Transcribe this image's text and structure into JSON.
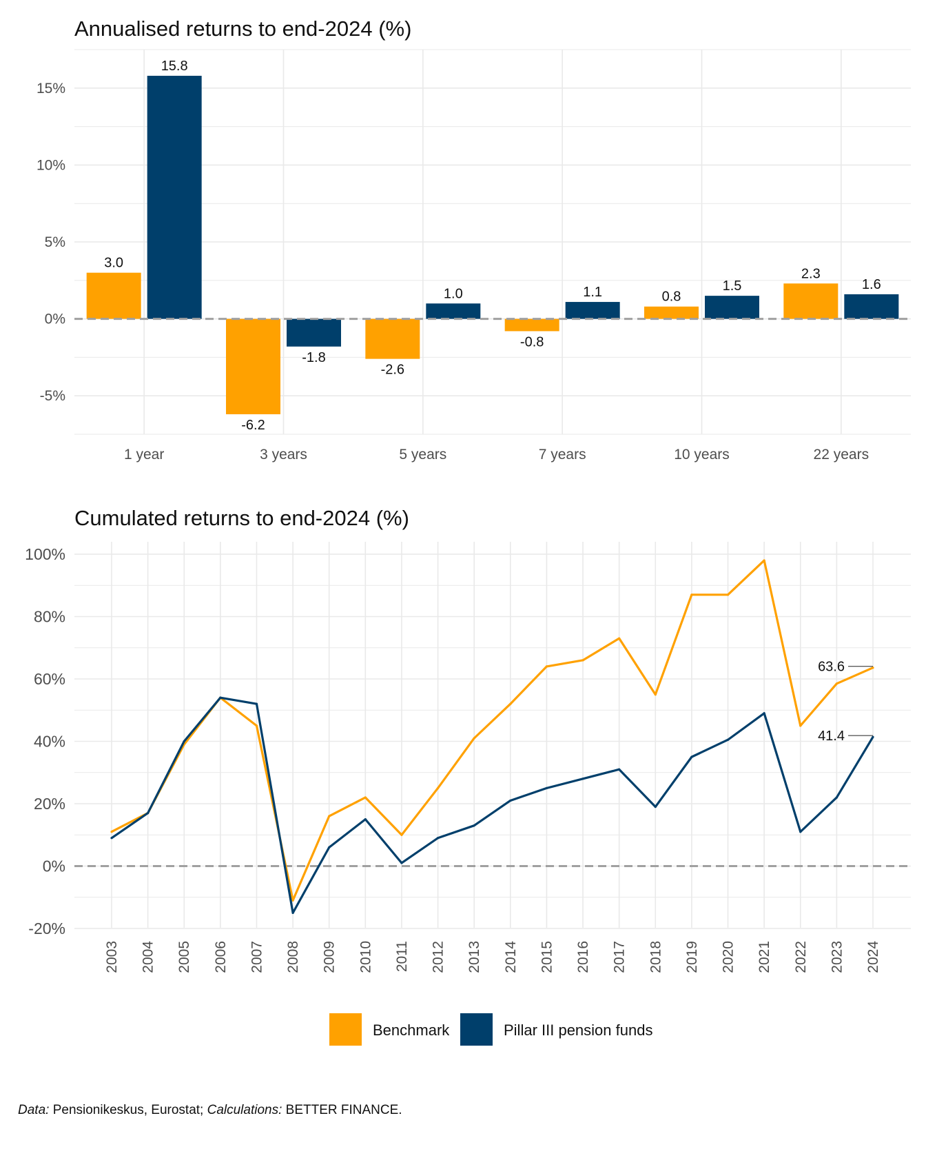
{
  "colors": {
    "benchmark": "#FFA100",
    "pillar": "#003F6B",
    "grid": "#e9e9e9",
    "zero": "#a0a0a0"
  },
  "legend": {
    "benchmark": "Benchmark",
    "pillar": "Pillar III pension funds"
  },
  "source": {
    "data_label": "Data:",
    "data_text": " Pensionikeskus, Eurostat; ",
    "calc_label": "Calculations:",
    "calc_text": " BETTER FINANCE."
  },
  "chart_data": [
    {
      "type": "bar",
      "title": "Annualised returns to end-2024 (%)",
      "categories": [
        "1 year",
        "3 years",
        "5 years",
        "7 years",
        "10 years",
        "22 years"
      ],
      "series": [
        {
          "name": "Benchmark",
          "values": [
            3.0,
            -6.2,
            -2.6,
            -0.8,
            0.8,
            2.3
          ]
        },
        {
          "name": "Pillar III pension funds",
          "values": [
            15.8,
            -1.8,
            1.0,
            1.1,
            1.5,
            1.6
          ]
        }
      ],
      "ylim": [
        -7.5,
        17.5
      ],
      "yticks": [
        -5,
        0,
        5,
        10,
        15
      ],
      "ytick_labels": [
        "-5%",
        "0%",
        "5%",
        "10%",
        "15%"
      ],
      "xlabel": "",
      "ylabel": ""
    },
    {
      "type": "line",
      "title": "Cumulated returns to end-2024 (%)",
      "x": [
        "2003",
        "2004",
        "2005",
        "2006",
        "2007",
        "2008",
        "2009",
        "2010",
        "2011",
        "2012",
        "2013",
        "2014",
        "2015",
        "2016",
        "2017",
        "2018",
        "2019",
        "2020",
        "2021",
        "2022",
        "2023",
        "2024"
      ],
      "series": [
        {
          "name": "Benchmark",
          "values": [
            11,
            17,
            39,
            54,
            45,
            -11,
            16,
            22,
            10,
            25,
            41,
            52,
            64,
            66,
            73,
            55,
            87,
            87,
            98,
            45,
            58.5,
            63.6
          ]
        },
        {
          "name": "Pillar III pension funds",
          "values": [
            9,
            17,
            40,
            54,
            52,
            -15,
            6,
            15,
            1,
            9,
            13,
            21,
            25,
            28,
            31,
            19,
            35,
            40.5,
            49,
            11,
            22,
            41.4
          ]
        }
      ],
      "end_labels": [
        "63.6",
        "41.4"
      ],
      "ylim": [
        -20,
        100
      ],
      "yticks": [
        -20,
        0,
        20,
        40,
        60,
        80,
        100
      ],
      "ytick_labels": [
        "-20%",
        "0%",
        "20%",
        "40%",
        "60%",
        "80%",
        "100%"
      ],
      "xlabel": "",
      "ylabel": ""
    }
  ]
}
